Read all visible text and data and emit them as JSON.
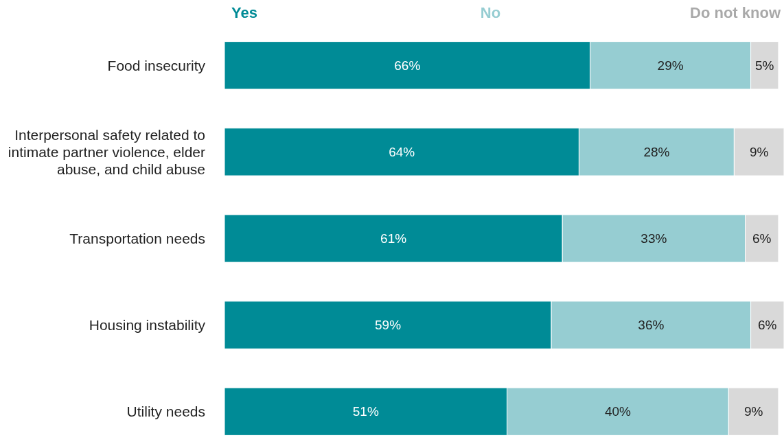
{
  "chart_data": {
    "type": "bar",
    "orientation": "horizontal",
    "stacked": true,
    "categories": [
      "Food insecurity",
      "Interpersonal safety related to intimate partner violence, elder abuse, and child abuse",
      "Transportation needs",
      "Housing instability",
      "Utility needs"
    ],
    "series": [
      {
        "name": "Yes",
        "color": "#008b96",
        "values": [
          66,
          64,
          61,
          59,
          51
        ],
        "value_labels": [
          "66%",
          "64%",
          "61%",
          "59%",
          "51%"
        ]
      },
      {
        "name": "No",
        "color": "#96cdd2",
        "values": [
          29,
          28,
          33,
          36,
          40
        ],
        "value_labels": [
          "29%",
          "28%",
          "33%",
          "36%",
          "40%"
        ]
      },
      {
        "name": "Do not know",
        "color": "#d9d9d9",
        "values": [
          5,
          9,
          6,
          6,
          9
        ],
        "value_labels": [
          "5%",
          "9%",
          "6%",
          "6%",
          "9%"
        ]
      }
    ],
    "legend": "top",
    "tick_labels": "y"
  }
}
